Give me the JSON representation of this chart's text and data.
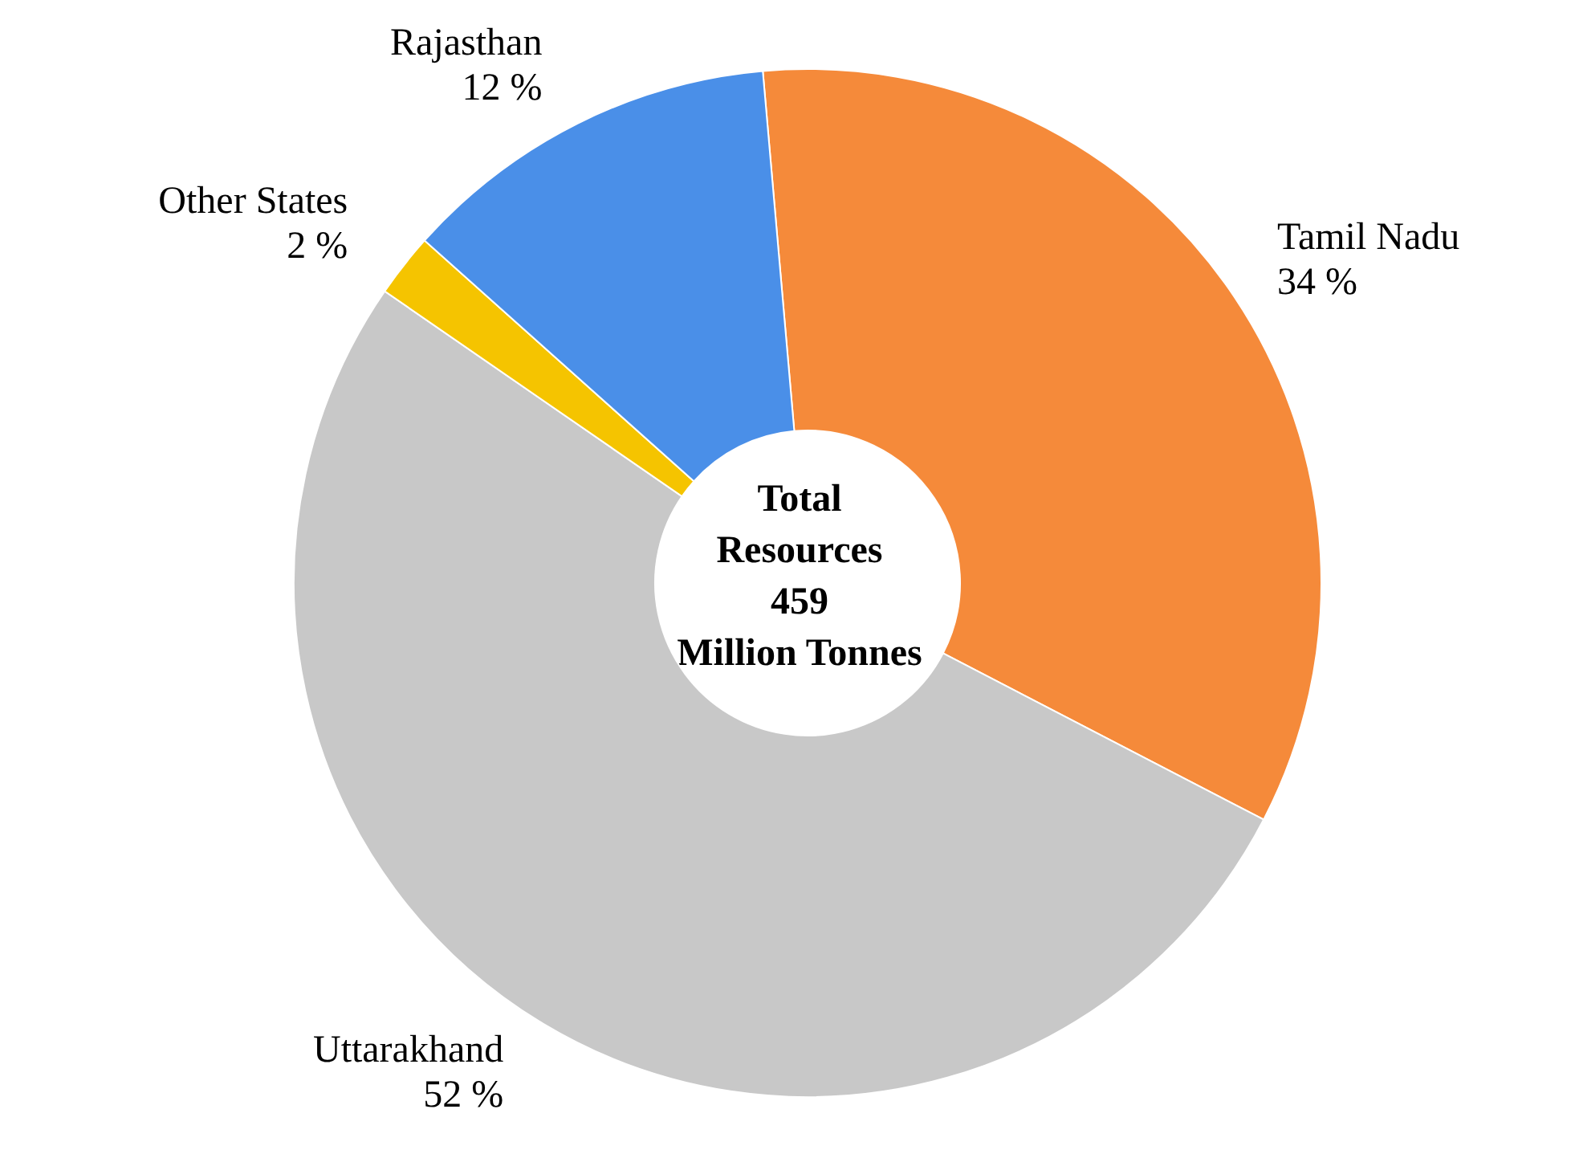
{
  "chart_data": {
    "type": "donut",
    "categories": [
      "Tamil Nadu",
      "Uttarakhand",
      "Other States",
      "Rajasthan"
    ],
    "values": [
      34,
      52,
      2,
      12
    ],
    "value_labels": [
      "34 %",
      "52 %",
      "2 %",
      "12 %"
    ],
    "colors": [
      "#f58a3a",
      "#c8c8c8",
      "#f5c400",
      "#4a8fe8"
    ],
    "annotations": [
      "Total",
      "Resources",
      "459",
      "Million Tonnes"
    ],
    "legend": false
  }
}
